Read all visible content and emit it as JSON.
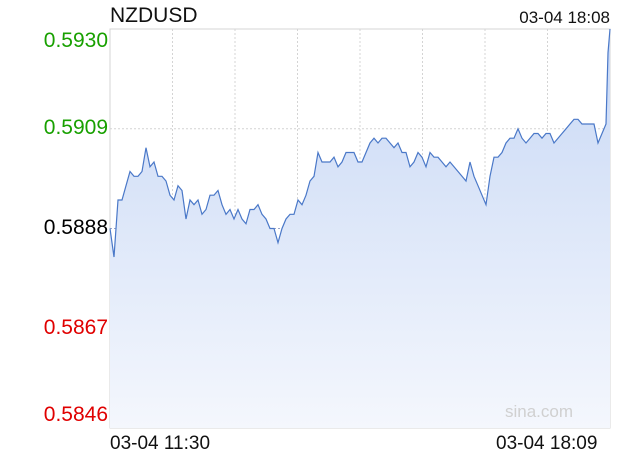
{
  "header": {
    "symbol": "NZDUSD",
    "timestamp": "03-04 18:08"
  },
  "watermark": "sina.com",
  "colors": {
    "line": "#4a78c8",
    "fill_top": "#c8d8f5",
    "fill_bottom": "#f4f7fd",
    "up": "#18a000",
    "down": "#e00000",
    "neutral": "#000000",
    "grid": "#d4d4d4",
    "reference": "#9aa4c8"
  },
  "chart_data": {
    "type": "area",
    "title": "NZDUSD",
    "reference_price": 0.5888,
    "y_ticks": [
      {
        "value": 0.593,
        "label": "0.5930",
        "status": "up"
      },
      {
        "value": 0.5909,
        "label": "0.5909",
        "status": "up"
      },
      {
        "value": 0.5888,
        "label": "0.5888",
        "status": "neutral"
      },
      {
        "value": 0.5867,
        "label": "0.5867",
        "status": "down"
      },
      {
        "value": 0.5846,
        "label": "0.5846",
        "status": "down"
      }
    ],
    "ylim": [
      0.5846,
      0.593
    ],
    "x_ticks": [
      {
        "label": "03-04 11:30",
        "position": "start"
      },
      {
        "label": "03-04 18:09",
        "position": "end"
      }
    ],
    "grid": true,
    "x": [
      0,
      4,
      8,
      12,
      16,
      20,
      24,
      28,
      32,
      36,
      40,
      44,
      48,
      52,
      56,
      60,
      64,
      68,
      72,
      76,
      80,
      84,
      88,
      92,
      96,
      100,
      104,
      108,
      112,
      116,
      120,
      124,
      128,
      132,
      136,
      140,
      144,
      148,
      152,
      156,
      160,
      164,
      168,
      172,
      176,
      180,
      184,
      188,
      192,
      196,
      200,
      204,
      208,
      212,
      216,
      220,
      224,
      228,
      232,
      236,
      240,
      244,
      248,
      252,
      256,
      260,
      264,
      268,
      272,
      276,
      280,
      284,
      288,
      292,
      296,
      300,
      304,
      308,
      312,
      316,
      320,
      324,
      328,
      332,
      336,
      340,
      344,
      348,
      352,
      356,
      360,
      364,
      368,
      372,
      376,
      380,
      384,
      388,
      392,
      396,
      400,
      404,
      408,
      412,
      416,
      420,
      424,
      428,
      432,
      436,
      440,
      444,
      448,
      452,
      456,
      460,
      464,
      468,
      472,
      476,
      480,
      484,
      488,
      492,
      496,
      498,
      500
    ],
    "values": [
      0.5888,
      0.5882,
      0.5894,
      0.5894,
      0.5897,
      0.59,
      0.5899,
      0.5899,
      0.59,
      0.5905,
      0.5901,
      0.5902,
      0.5899,
      0.5899,
      0.5898,
      0.5895,
      0.5894,
      0.5897,
      0.5896,
      0.589,
      0.5894,
      0.5893,
      0.5894,
      0.5891,
      0.5892,
      0.5895,
      0.5895,
      0.5896,
      0.5893,
      0.5891,
      0.5892,
      0.589,
      0.5892,
      0.589,
      0.5889,
      0.5892,
      0.5892,
      0.5893,
      0.5891,
      0.589,
      0.5888,
      0.5888,
      0.5885,
      0.5888,
      0.589,
      0.5891,
      0.5891,
      0.5894,
      0.5893,
      0.5895,
      0.5898,
      0.5899,
      0.5904,
      0.5902,
      0.5902,
      0.5902,
      0.5903,
      0.5901,
      0.5902,
      0.5904,
      0.5904,
      0.5904,
      0.5902,
      0.5902,
      0.5904,
      0.5906,
      0.5907,
      0.5906,
      0.5907,
      0.5907,
      0.5906,
      0.5905,
      0.5906,
      0.5904,
      0.5904,
      0.5901,
      0.5902,
      0.5904,
      0.5903,
      0.5901,
      0.5904,
      0.5903,
      0.5903,
      0.5902,
      0.5901,
      0.5902,
      0.5901,
      0.59,
      0.5899,
      0.5898,
      0.5902,
      0.5899,
      0.5897,
      0.5895,
      0.5893,
      0.5899,
      0.5903,
      0.5903,
      0.5904,
      0.5906,
      0.5907,
      0.5907,
      0.5909,
      0.5907,
      0.5906,
      0.5907,
      0.5908,
      0.5908,
      0.5907,
      0.5908,
      0.5908,
      0.5906,
      0.5907,
      0.5908,
      0.5909,
      0.591,
      0.5911,
      0.5911,
      0.591,
      0.591,
      0.591,
      0.591,
      0.5906,
      0.5908,
      0.591,
      0.5925,
      0.593
    ]
  }
}
